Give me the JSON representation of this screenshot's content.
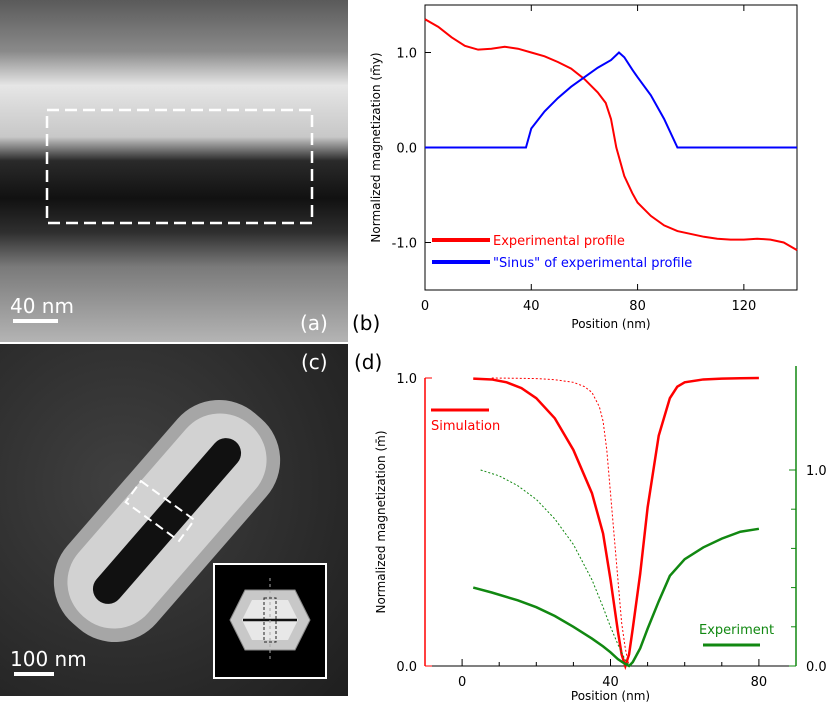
{
  "panels": {
    "a": {
      "label": "(a)",
      "scale_label": "40 nm"
    },
    "b": {
      "label": "(b)"
    },
    "c": {
      "label": "(c)",
      "scale_label": "100 nm"
    },
    "d": {
      "label": "(d)"
    }
  },
  "chart_data": [
    {
      "id": "b",
      "type": "line",
      "xlabel": "Position (nm)",
      "ylabel": "Normalized magnetization (m̄y)",
      "xlim": [
        0,
        140
      ],
      "ylim": [
        -1.5,
        1.5
      ],
      "xticks": [
        0,
        40,
        80,
        120
      ],
      "xtick_labels": [
        "0",
        "40",
        "80",
        "120"
      ],
      "yticks": [
        1.0,
        0.0,
        -1.0
      ],
      "ytick_labels": [
        "1.0",
        "0.0",
        "-1.0"
      ],
      "grid": false,
      "legend": "lower-left",
      "series": [
        {
          "name": "Experimental profile",
          "color": "#ff0000",
          "x": [
            0,
            5,
            10,
            15,
            20,
            25,
            30,
            35,
            40,
            45,
            50,
            55,
            60,
            65,
            68,
            70,
            72,
            75,
            78,
            80,
            85,
            90,
            95,
            100,
            105,
            110,
            115,
            120,
            125,
            130,
            135,
            140
          ],
          "y": [
            1.35,
            1.27,
            1.16,
            1.07,
            1.03,
            1.04,
            1.06,
            1.04,
            1.0,
            0.96,
            0.9,
            0.83,
            0.72,
            0.58,
            0.47,
            0.3,
            0.0,
            -0.3,
            -0.48,
            -0.58,
            -0.72,
            -0.82,
            -0.88,
            -0.91,
            -0.94,
            -0.96,
            -0.97,
            -0.97,
            -0.96,
            -0.97,
            -1.0,
            -1.08
          ]
        },
        {
          "name": "\"Sinus\" of experimental profile",
          "color": "#0000ff",
          "x": [
            0,
            38,
            40,
            45,
            50,
            55,
            60,
            65,
            70,
            73,
            75,
            78,
            80,
            85,
            90,
            95,
            140
          ],
          "y": [
            0.0,
            0.0,
            0.2,
            0.38,
            0.52,
            0.64,
            0.74,
            0.84,
            0.92,
            1.0,
            0.95,
            0.82,
            0.74,
            0.55,
            0.3,
            0.0,
            0.0
          ]
        }
      ]
    },
    {
      "id": "d",
      "type": "line",
      "xlabel": "Position (nm)",
      "ylabel": "Normalized magnetization (m̄)",
      "xlim": [
        -10,
        90
      ],
      "ylim": [
        0,
        1.0
      ],
      "xticks": [
        0,
        40,
        80
      ],
      "xtick_labels": [
        "0",
        "40",
        "80"
      ],
      "yticks": [
        0.0,
        1.0
      ],
      "ytick_labels": [
        "0.0",
        "1.0"
      ],
      "y2lim": [
        0,
        1.0
      ],
      "y2ticks": [
        0.0,
        1.0
      ],
      "y2tick_labels": [
        "0.0",
        "1.0"
      ],
      "grid": false,
      "series": [
        {
          "name": "Simulation",
          "color": "#ff0000",
          "style": "solid",
          "x": [
            3,
            8,
            12,
            16,
            20,
            25,
            30,
            35,
            38,
            40,
            42,
            43,
            44,
            45,
            46,
            48,
            50,
            53,
            56,
            58,
            60,
            65,
            70,
            75,
            80
          ],
          "y": [
            0.998,
            0.995,
            0.985,
            0.965,
            0.93,
            0.86,
            0.75,
            0.6,
            0.46,
            0.3,
            0.12,
            0.04,
            0.0,
            0.04,
            0.13,
            0.32,
            0.55,
            0.8,
            0.93,
            0.97,
            0.985,
            0.995,
            0.998,
            0.999,
            1.0
          ]
        },
        {
          "name": "",
          "color": "#ff0000",
          "style": "dotted",
          "x": [
            8,
            15,
            20,
            25,
            30,
            33,
            35,
            37,
            38,
            39,
            40,
            41,
            42,
            43,
            44,
            45
          ],
          "y": [
            1.0,
            0.999,
            0.998,
            0.994,
            0.985,
            0.97,
            0.95,
            0.9,
            0.85,
            0.75,
            0.6,
            0.45,
            0.3,
            0.15,
            0.06,
            0.0
          ]
        },
        {
          "name": "Experiment",
          "axis": "right",
          "color": "#118811",
          "style": "solid",
          "x": [
            3,
            8,
            15,
            20,
            25,
            30,
            35,
            38,
            40,
            42,
            44,
            45,
            46,
            48,
            50,
            53,
            56,
            60,
            65,
            70,
            75,
            80
          ],
          "y": [
            0.4,
            0.375,
            0.335,
            0.3,
            0.255,
            0.2,
            0.14,
            0.1,
            0.07,
            0.035,
            0.01,
            0.0,
            0.02,
            0.09,
            0.19,
            0.33,
            0.46,
            0.545,
            0.605,
            0.65,
            0.685,
            0.7
          ]
        },
        {
          "name": "",
          "axis": "right",
          "color": "#118811",
          "style": "dotted",
          "x": [
            5,
            10,
            15,
            20,
            25,
            30,
            35,
            38,
            40,
            42,
            44,
            45
          ],
          "y": [
            1.0,
            0.97,
            0.92,
            0.85,
            0.75,
            0.62,
            0.44,
            0.3,
            0.2,
            0.11,
            0.03,
            0.0
          ]
        }
      ]
    }
  ]
}
